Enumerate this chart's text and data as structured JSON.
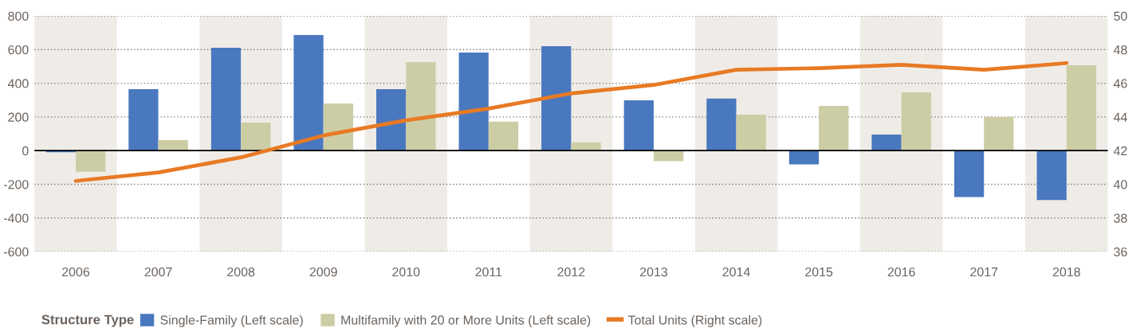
{
  "chart_data": {
    "type": "bar",
    "categories": [
      "2006",
      "2007",
      "2008",
      "2009",
      "2010",
      "2011",
      "2012",
      "2013",
      "2014",
      "2015",
      "2016",
      "2017",
      "2018"
    ],
    "series": [
      {
        "name": "Single-Family (Left scale)",
        "color": "#4a78bf",
        "values": [
          -10,
          365,
          611,
          687,
          365,
          583,
          620,
          299,
          309,
          -82,
          96,
          -276,
          -294
        ]
      },
      {
        "name": "Multifamily with 20 or More Units (Left scale)",
        "color": "#cdcda5",
        "values": [
          -125,
          63,
          167,
          280,
          526,
          172,
          49,
          -63,
          214,
          266,
          346,
          200,
          507
        ]
      },
      {
        "name": "Total Units (Right scale)",
        "type": "line",
        "axis": "y2",
        "color": "#e87a24",
        "values": [
          40.2,
          40.7,
          41.6,
          42.9,
          43.8,
          44.5,
          45.4,
          45.9,
          46.8,
          46.9,
          47.1,
          46.8,
          47.2
        ]
      }
    ],
    "ylim": [
      -600,
      800
    ],
    "yticks": [
      -600,
      -400,
      -200,
      0,
      200,
      400,
      600,
      800
    ],
    "y2lim": [
      36,
      50
    ],
    "y2ticks": [
      36,
      38,
      40,
      42,
      44,
      46,
      48,
      50
    ],
    "grid": "y",
    "legend": "bottom",
    "legend_title": "Structure Type",
    "ref_lines": [
      {
        "axis": "y",
        "value": 0,
        "color": "#000000"
      }
    ],
    "bands": [
      {
        "axis": "x",
        "from": "2006",
        "to": "2006",
        "color": "#efece7"
      },
      {
        "axis": "x",
        "from": "2008",
        "to": "2008",
        "color": "#efece7"
      },
      {
        "axis": "x",
        "from": "2010",
        "to": "2010",
        "color": "#efece7"
      },
      {
        "axis": "x",
        "from": "2012",
        "to": "2012",
        "color": "#efece7"
      },
      {
        "axis": "x",
        "from": "2014",
        "to": "2014",
        "color": "#efece7"
      },
      {
        "axis": "x",
        "from": "2016",
        "to": "2016",
        "color": "#efece7"
      },
      {
        "axis": "x",
        "from": "2018",
        "to": "2018",
        "color": "#efece7"
      }
    ]
  }
}
